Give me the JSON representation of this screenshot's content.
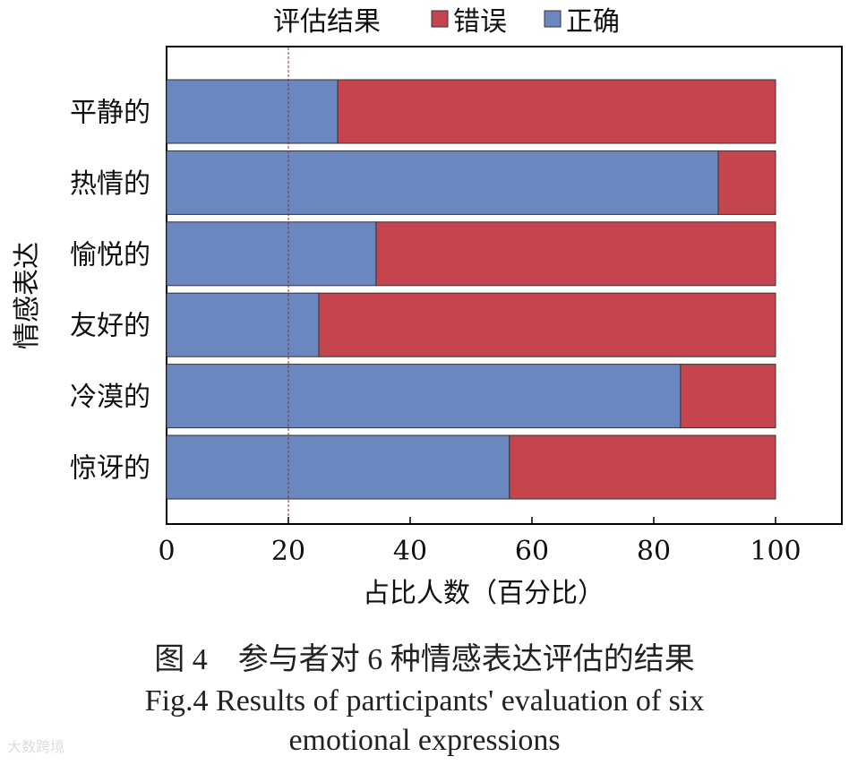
{
  "chart_data": {
    "type": "bar",
    "orientation": "horizontal",
    "stacked": true,
    "categories": [
      "平静的",
      "热情的",
      "愉悦的",
      "友好的",
      "冷漠的",
      "惊讶的"
    ],
    "series": [
      {
        "name": "正确",
        "color": "#6b87c0",
        "values": [
          28.1,
          90.6,
          34.4,
          25.0,
          84.4,
          56.3
        ]
      },
      {
        "name": "错误",
        "color": "#c5454e",
        "values": [
          71.9,
          9.4,
          65.6,
          75.0,
          15.6,
          43.7
        ]
      }
    ],
    "legend_title": "评估结果",
    "legend_placement": "top",
    "xlabel": "占比人数（百分比）",
    "ylabel": "情感表达",
    "xlim": [
      0,
      100
    ],
    "xticks": [
      "0",
      "20",
      "40",
      "60",
      "80",
      "100"
    ],
    "reference_line": {
      "x": 20,
      "color": "#8b2c3c",
      "style": "dashed"
    },
    "grid": false
  },
  "caption": {
    "cn": "图 4　参与者对 6 种情感表达评估的结果",
    "en_line1": "Fig.4 Results of participants' evaluation of six",
    "en_line2": "emotional expressions"
  },
  "watermark": "大数跨境"
}
